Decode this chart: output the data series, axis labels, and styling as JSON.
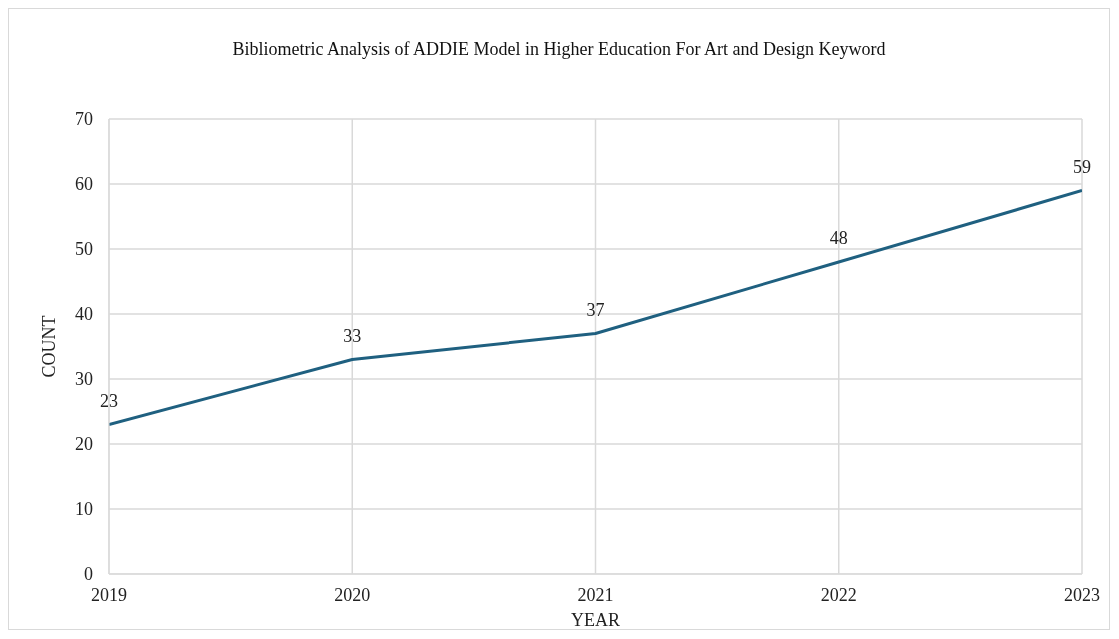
{
  "chart_data": {
    "type": "line",
    "title": "Bibliometric Analysis of ADDIE Model in Higher Education For Art and Design Keyword",
    "xlabel": "YEAR",
    "ylabel": "COUNT",
    "x": [
      2019,
      2020,
      2021,
      2022,
      2023
    ],
    "values": [
      23,
      33,
      37,
      48,
      59
    ],
    "color": "#1f6080",
    "xlim": [
      2019,
      2023
    ],
    "xticks": [
      2019,
      2020,
      2021,
      2022,
      2023
    ],
    "ylim": [
      0,
      70
    ],
    "yticks": [
      0,
      10,
      20,
      30,
      40,
      50,
      60,
      70
    ],
    "grid": true,
    "legend": false,
    "marker": "none",
    "line_style": "solid",
    "data_labels": true
  }
}
